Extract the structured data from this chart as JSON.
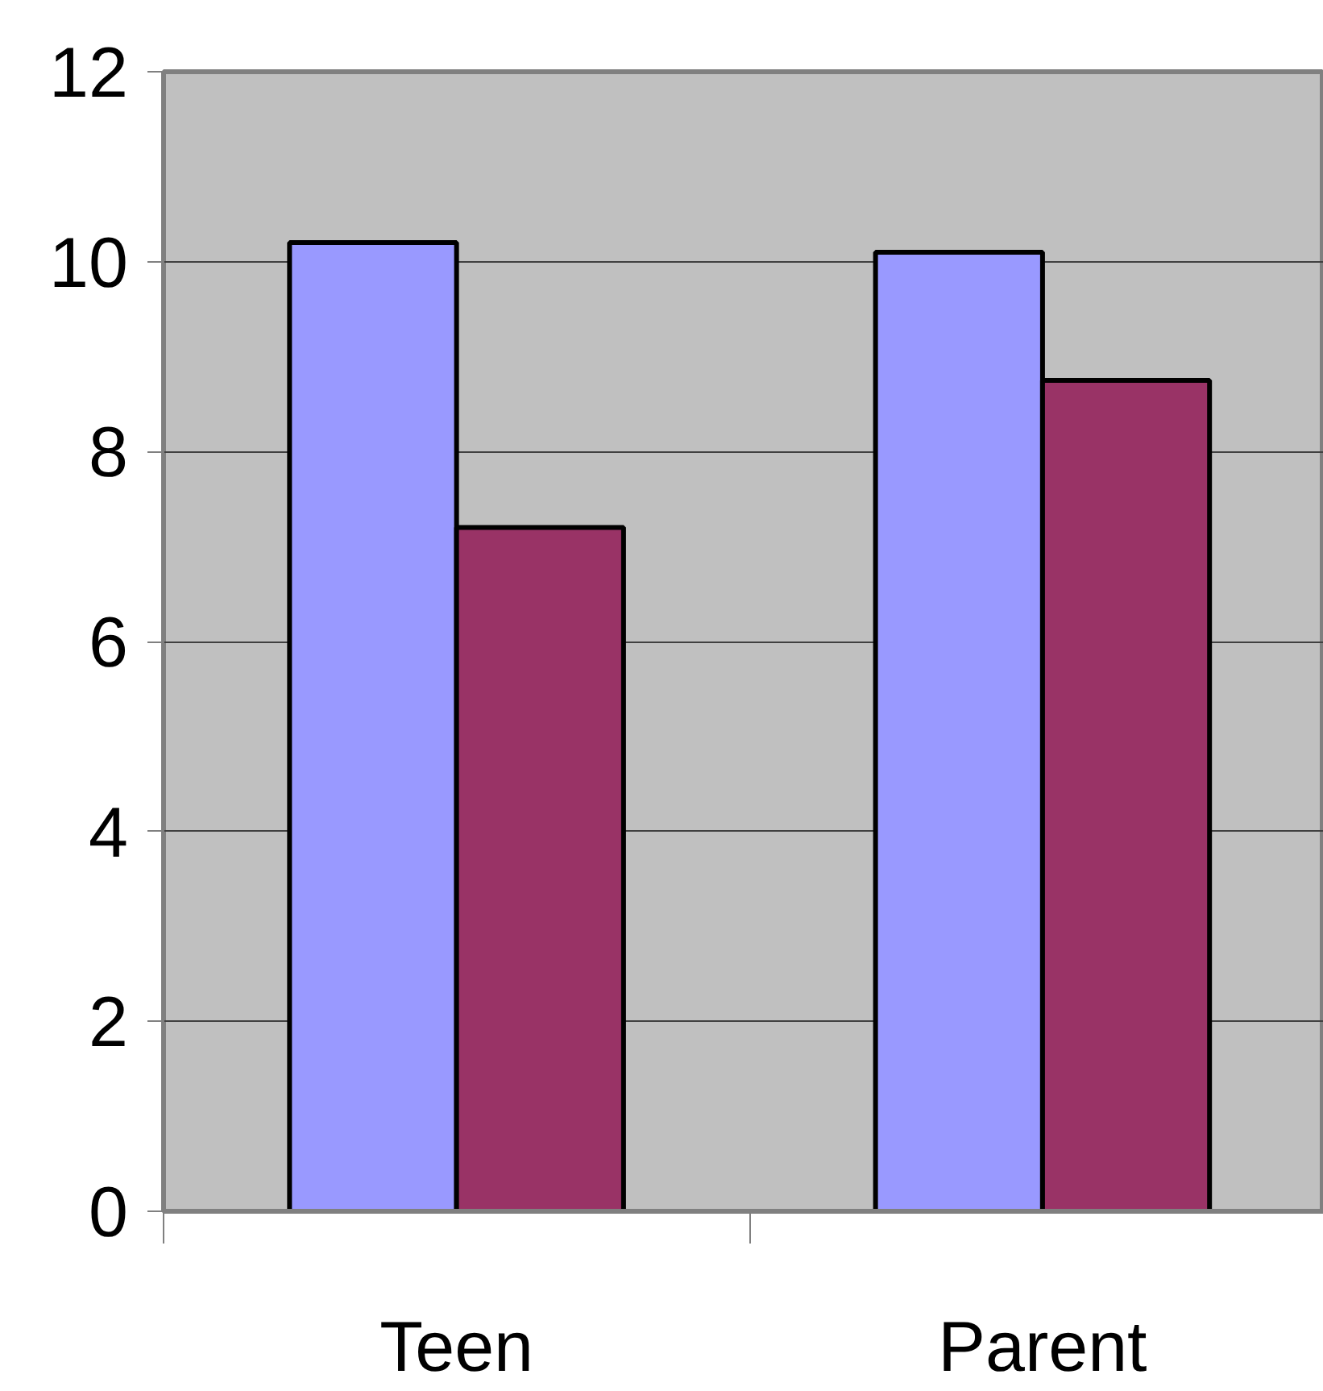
{
  "chart_data": {
    "type": "bar",
    "categories": [
      "Teen",
      "Parent"
    ],
    "series": [
      {
        "color": "#9999ff",
        "values": [
          10.2,
          10.1
        ]
      },
      {
        "color": "#993366",
        "values": [
          7.2,
          8.75
        ]
      }
    ],
    "ylim": [
      0,
      12
    ],
    "yticks": [
      0,
      2,
      4,
      6,
      8,
      10,
      12
    ],
    "grid": "y"
  }
}
